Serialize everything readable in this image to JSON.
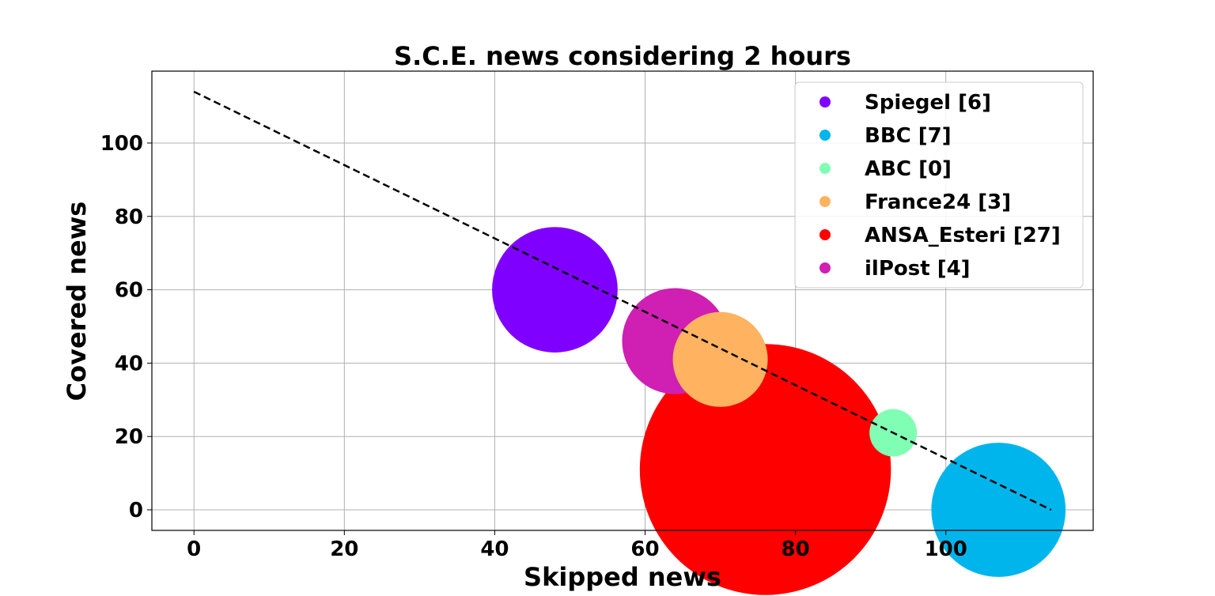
{
  "chart_data": {
    "type": "scatter",
    "title": "S.C.E. news considering 2 hours",
    "xlabel": "Skipped news",
    "ylabel": "Covered news",
    "xlim": [
      -5.6,
      119.6
    ],
    "ylim": [
      -5.6,
      119.6
    ],
    "xticks": [
      0,
      20,
      40,
      60,
      80,
      100
    ],
    "yticks": [
      0,
      20,
      40,
      60,
      80,
      100
    ],
    "grid": true,
    "legend_position": "top-right",
    "series": [
      {
        "name": "Spiegel [6]",
        "color": "#8000ff",
        "x": 48,
        "y": 60,
        "size": 6
      },
      {
        "name": "BBC [7]",
        "color": "#00b5eb",
        "x": 107,
        "y": 0,
        "size": 7
      },
      {
        "name": "ABC [0]",
        "color": "#80ffb4",
        "x": 93,
        "y": 21,
        "size": 0
      },
      {
        "name": "France24 [3]",
        "color": "#ffb360",
        "x": 70,
        "y": 41,
        "size": 3
      },
      {
        "name": "ANSA_Esteri [27]",
        "color": "#ff0000",
        "x": 76,
        "y": 11,
        "size": 27
      },
      {
        "name": "ilPost [4]",
        "color": "#d01fb3",
        "x": 64,
        "y": 46,
        "size": 4
      }
    ],
    "reference_line": {
      "x": [
        0,
        114
      ],
      "y": [
        114,
        0
      ],
      "style": "dashed",
      "color": "#000000"
    }
  }
}
